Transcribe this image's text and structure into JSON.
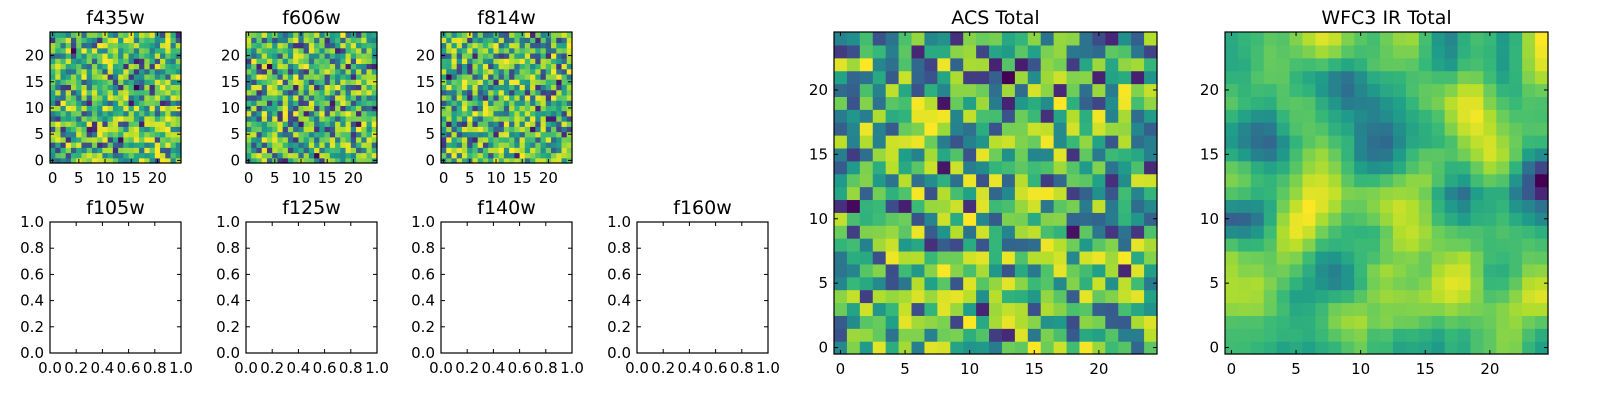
{
  "chart_data": [
    {
      "type": "heatmap",
      "title": "f435w",
      "grid_size": 25,
      "xlim": [
        -0.5,
        24.5
      ],
      "ylim": [
        -0.5,
        24.5
      ],
      "xticks": [
        0,
        5,
        10,
        15,
        20
      ],
      "yticks": [
        0,
        5,
        10,
        15,
        20
      ],
      "colormap": "viridis",
      "seed": 11,
      "smoothness": 0,
      "empty": false
    },
    {
      "type": "heatmap",
      "title": "f606w",
      "grid_size": 25,
      "xlim": [
        -0.5,
        24.5
      ],
      "ylim": [
        -0.5,
        24.5
      ],
      "xticks": [
        0,
        5,
        10,
        15,
        20
      ],
      "yticks": [
        0,
        5,
        10,
        15,
        20
      ],
      "colormap": "viridis",
      "seed": 23,
      "smoothness": 0,
      "empty": false
    },
    {
      "type": "heatmap",
      "title": "f814w",
      "grid_size": 25,
      "xlim": [
        -0.5,
        24.5
      ],
      "ylim": [
        -0.5,
        24.5
      ],
      "xticks": [
        0,
        5,
        10,
        15,
        20
      ],
      "yticks": [
        0,
        5,
        10,
        15,
        20
      ],
      "colormap": "viridis",
      "seed": 37,
      "smoothness": 0,
      "empty": false
    },
    {
      "type": "empty",
      "title": "f105w",
      "xlim": [
        0,
        1
      ],
      "ylim": [
        0,
        1
      ],
      "xticks": [
        "0.0",
        "0.2",
        "0.4",
        "0.6",
        "0.8",
        "1.0"
      ],
      "yticks": [
        "0.0",
        "0.2",
        "0.4",
        "0.6",
        "0.8",
        "1.0"
      ],
      "empty": true
    },
    {
      "type": "empty",
      "title": "f125w",
      "xlim": [
        0,
        1
      ],
      "ylim": [
        0,
        1
      ],
      "xticks": [
        "0.0",
        "0.2",
        "0.4",
        "0.6",
        "0.8",
        "1.0"
      ],
      "yticks": [
        "0.0",
        "0.2",
        "0.4",
        "0.6",
        "0.8",
        "1.0"
      ],
      "empty": true
    },
    {
      "type": "empty",
      "title": "f140w",
      "xlim": [
        0,
        1
      ],
      "ylim": [
        0,
        1
      ],
      "xticks": [
        "0.0",
        "0.2",
        "0.4",
        "0.6",
        "0.8",
        "1.0"
      ],
      "yticks": [
        "0.0",
        "0.2",
        "0.4",
        "0.6",
        "0.8",
        "1.0"
      ],
      "empty": true
    },
    {
      "type": "empty",
      "title": "f160w",
      "xlim": [
        0,
        1
      ],
      "ylim": [
        0,
        1
      ],
      "xticks": [
        "0.0",
        "0.2",
        "0.4",
        "0.6",
        "0.8",
        "1.0"
      ],
      "yticks": [
        "0.0",
        "0.2",
        "0.4",
        "0.6",
        "0.8",
        "1.0"
      ],
      "empty": true
    },
    {
      "type": "heatmap",
      "title": "ACS Total",
      "grid_size": 25,
      "xlim": [
        -0.5,
        24.5
      ],
      "ylim": [
        -0.5,
        24.5
      ],
      "xticks": [
        0,
        5,
        10,
        15,
        20
      ],
      "yticks": [
        0,
        5,
        10,
        15,
        20
      ],
      "colormap": "viridis",
      "seed": 53,
      "smoothness": 0,
      "empty": false
    },
    {
      "type": "heatmap",
      "title": "WFC3 IR Total",
      "grid_size": 25,
      "xlim": [
        -0.5,
        24.5
      ],
      "ylim": [
        -0.5,
        24.5
      ],
      "xticks": [
        0,
        5,
        10,
        15,
        20
      ],
      "yticks": [
        0,
        5,
        10,
        15,
        20
      ],
      "colormap": "viridis",
      "seed": 71,
      "smoothness": 2,
      "empty": false
    }
  ]
}
